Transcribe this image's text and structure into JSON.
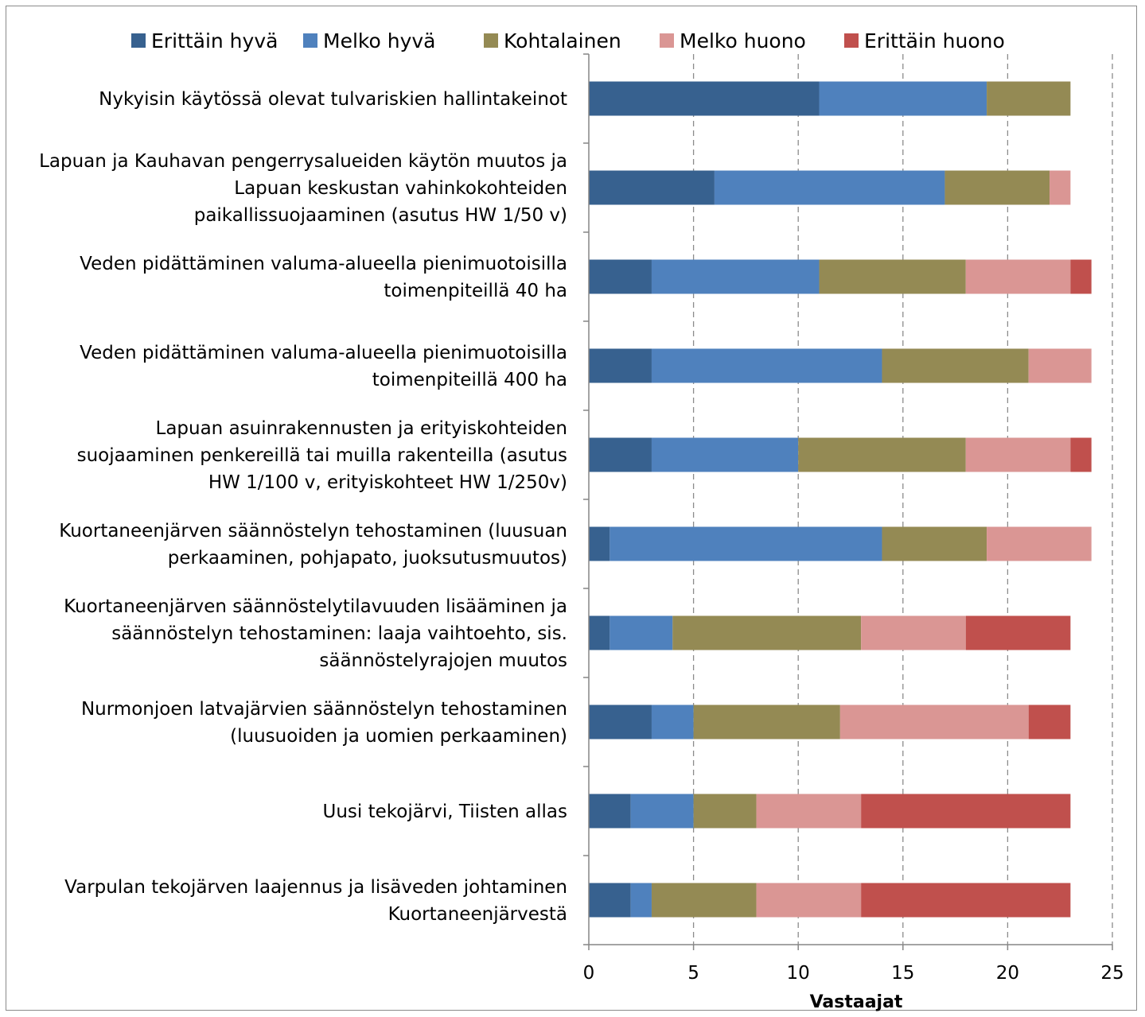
{
  "chart_data": {
    "type": "bar",
    "orientation": "horizontal",
    "stacked": true,
    "title": "",
    "xlabel": "Vastaajat",
    "ylabel": "",
    "xlim": [
      0,
      25
    ],
    "xticks": [
      0,
      5,
      10,
      15,
      20,
      25
    ],
    "grid": "vertical dashed",
    "legend_position": "top",
    "categories": [
      [
        "Nykyisin käytössä olevat tulvariskien hallintakeinot"
      ],
      [
        "Lapuan ja Kauhavan pengerrysalueiden käytön muutos ja",
        "Lapuan keskustan vahinkokohteiden",
        "paikallissuojaaminen (asutus HW 1/50 v)"
      ],
      [
        "Veden pidättäminen valuma-alueella pienimuotoisilla",
        "toimenpiteillä 40 ha"
      ],
      [
        "Veden pidättäminen valuma-alueella pienimuotoisilla",
        "toimenpiteillä 400 ha"
      ],
      [
        "Lapuan asuinrakennusten ja erityiskohteiden",
        "suojaaminen penkereillä tai muilla rakenteilla (asutus",
        "HW 1/100 v, erityiskohteet HW 1/250v)"
      ],
      [
        "Kuortaneenjärven säännöstelyn tehostaminen (luusuan",
        "perkaaminen, pohjapato, juoksutusmuutos)"
      ],
      [
        "Kuortaneenjärven säännöstelytilavuuden lisääminen ja",
        "säännöstelyn tehostaminen: laaja vaihtoehto, sis.",
        "säännöstelyrajojen muutos"
      ],
      [
        "Nurmonjoen latvajärvien säännöstelyn tehostaminen",
        "(luusuoiden ja uomien perkaaminen)"
      ],
      [
        "Uusi tekojärvi, Tiisten allas"
      ],
      [
        "Varpulan tekojärven laajennus ja lisäveden johtaminen",
        "Kuortaneenjärvestä"
      ]
    ],
    "series": [
      {
        "name": "Erittäin hyvä",
        "color": "#37618f",
        "values": [
          11,
          6,
          3,
          3,
          3,
          1,
          1,
          3,
          2,
          2
        ]
      },
      {
        "name": "Melko hyvä",
        "color": "#4f81bd",
        "values": [
          8,
          11,
          8,
          11,
          7,
          13,
          3,
          2,
          3,
          1
        ]
      },
      {
        "name": "Kohtalainen",
        "color": "#948a54",
        "values": [
          4,
          5,
          7,
          7,
          8,
          5,
          9,
          7,
          3,
          5
        ]
      },
      {
        "name": "Melko huono",
        "color": "#da9694",
        "values": [
          0,
          1,
          5,
          3,
          5,
          5,
          5,
          9,
          5,
          5
        ]
      },
      {
        "name": "Erittäin huono",
        "color": "#c0504d",
        "values": [
          0,
          0,
          1,
          0,
          1,
          0,
          5,
          2,
          10,
          10
        ]
      }
    ]
  }
}
